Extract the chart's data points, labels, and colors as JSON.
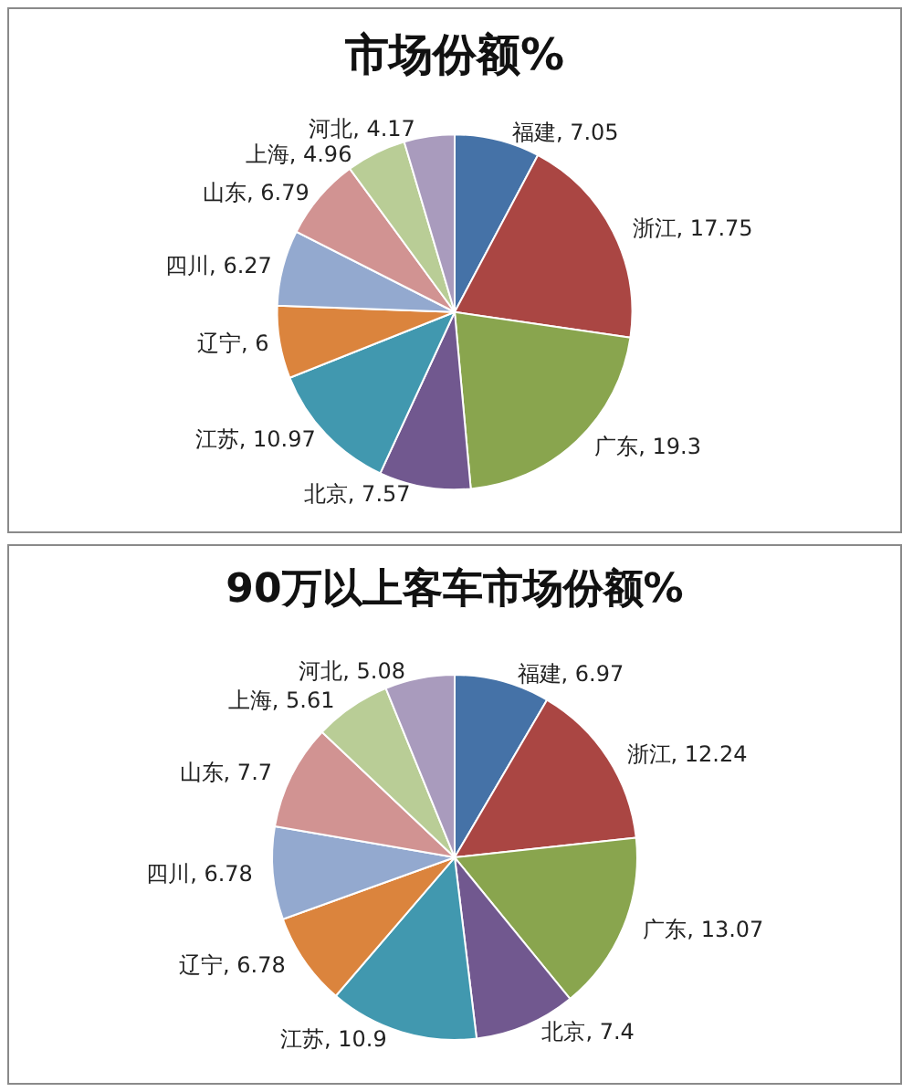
{
  "chart_data": [
    {
      "type": "pie",
      "title": "市场份额%",
      "categories": [
        "福建",
        "浙江",
        "广东",
        "北京",
        "江苏",
        "辽宁",
        "四川",
        "山东",
        "上海",
        "河北"
      ],
      "values": [
        7.05,
        17.75,
        19.3,
        7.57,
        10.97,
        6,
        6.27,
        6.79,
        4.96,
        4.17
      ],
      "value_labels": [
        ", 7.05",
        ", 17.75",
        ", 19.3",
        ", 7.57",
        ", 10.97",
        ", 6",
        ", 6.27",
        ", 6.79",
        ", 4.96",
        ", 4.17"
      ],
      "colors": [
        "#4572a7",
        "#aa4643",
        "#89a54e",
        "#71588f",
        "#4198af",
        "#db843d",
        "#93a9cf",
        "#d19392",
        "#b9cd96",
        "#a99bbd"
      ]
    },
    {
      "type": "pie",
      "title": "90万以上客车市场份额%",
      "categories": [
        "福建",
        "浙江",
        "广东",
        "北京",
        "江苏",
        "辽宁",
        "四川",
        "山东",
        "上海",
        "河北"
      ],
      "values": [
        6.97,
        12.24,
        13.07,
        7.4,
        10.9,
        6.78,
        6.78,
        7.7,
        5.61,
        5.08
      ],
      "value_labels": [
        ", 6.97",
        ", 12.24",
        ", 13.07",
        ", 7.4",
        ", 10.9",
        ", 6.78",
        ", 6.78",
        ", 7.7",
        ", 5.61",
        ", 5.08"
      ],
      "colors": [
        "#4572a7",
        "#aa4643",
        "#89a54e",
        "#71588f",
        "#4198af",
        "#db843d",
        "#93a9cf",
        "#d19392",
        "#b9cd96",
        "#a99bbd"
      ]
    }
  ]
}
